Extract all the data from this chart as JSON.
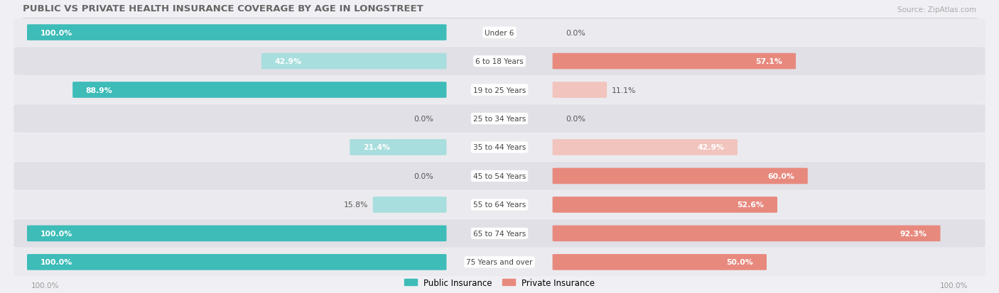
{
  "title": "PUBLIC VS PRIVATE HEALTH INSURANCE COVERAGE BY AGE IN LONGSTREET",
  "source": "Source: ZipAtlas.com",
  "categories": [
    "Under 6",
    "6 to 18 Years",
    "19 to 25 Years",
    "25 to 34 Years",
    "35 to 44 Years",
    "45 to 54 Years",
    "55 to 64 Years",
    "65 to 74 Years",
    "75 Years and over"
  ],
  "public_values": [
    100.0,
    42.9,
    88.9,
    0.0,
    21.4,
    0.0,
    15.8,
    100.0,
    100.0
  ],
  "private_values": [
    0.0,
    57.1,
    11.1,
    0.0,
    42.9,
    60.0,
    52.6,
    92.3,
    50.0
  ],
  "public_color": "#3dbcb8",
  "private_color": "#e8897e",
  "public_color_light": "#a8dedd",
  "private_color_light": "#f2c4be",
  "row_bg_odd": "#ebebef",
  "row_bg_even": "#e0e0e6",
  "title_color": "#666666",
  "source_color": "#aaaaaa",
  "figsize": [
    14.06,
    4.14
  ],
  "dpi": 100
}
